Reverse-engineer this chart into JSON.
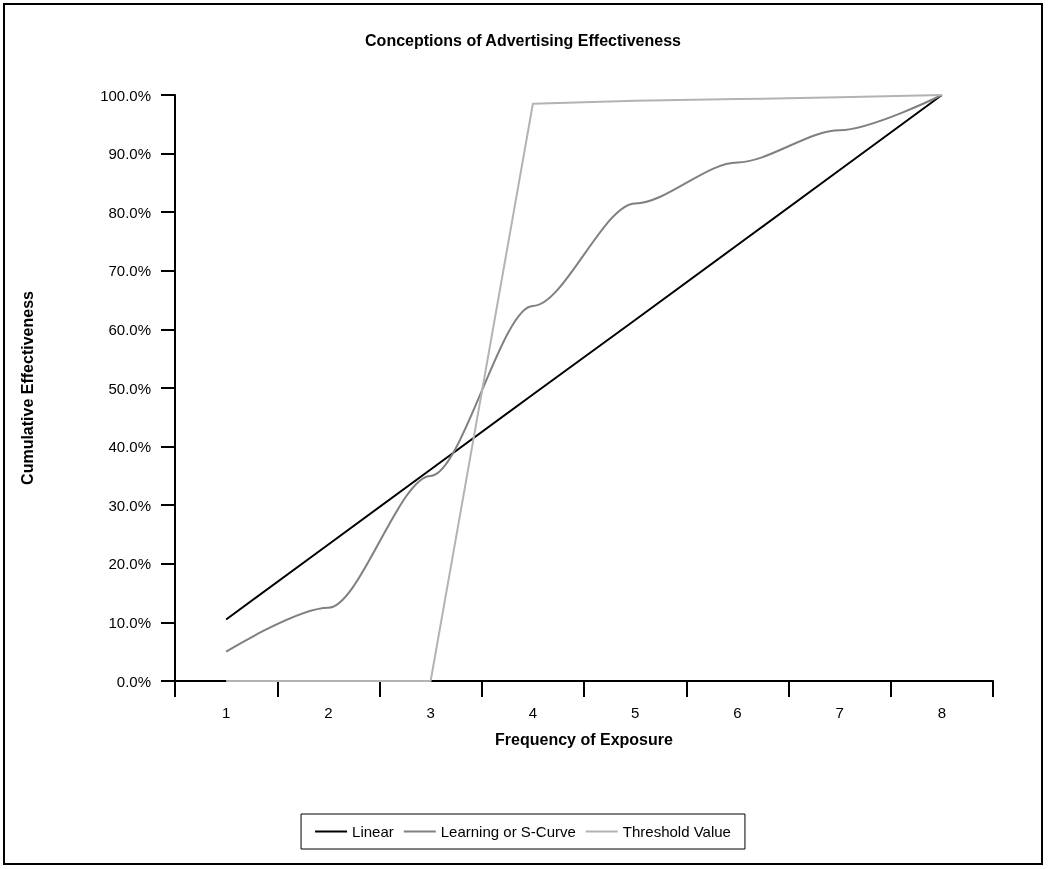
{
  "chart_data": {
    "type": "line",
    "title": "Conceptions of Advertising Effectiveness",
    "xlabel": "Frequency of Exposure",
    "ylabel": "Cumulative Effectiveness",
    "categories": [
      "1",
      "2",
      "3",
      "4",
      "5",
      "6",
      "7",
      "8"
    ],
    "series": [
      {
        "name": "Linear",
        "color": "#000000",
        "values": [
          10.5,
          23.3,
          36.1,
          48.9,
          61.6,
          74.4,
          87.2,
          100
        ]
      },
      {
        "name": "Learning or S-Curve",
        "color": "#808080",
        "values": [
          5,
          12.5,
          35,
          64,
          81.5,
          88.5,
          94,
          100
        ]
      },
      {
        "name": "Threshold Value",
        "color": "#b3b3b3",
        "values": [
          0,
          0,
          0,
          98.5,
          99,
          99.3,
          99.6,
          100
        ]
      }
    ],
    "ylim": [
      0,
      100
    ],
    "yticks": [
      {
        "value": 0,
        "label": "0.0%"
      },
      {
        "value": 10,
        "label": "10.0%"
      },
      {
        "value": 20,
        "label": "20.0%"
      },
      {
        "value": 30,
        "label": "30.0%"
      },
      {
        "value": 40,
        "label": "40.0%"
      },
      {
        "value": 50,
        "label": "50.0%"
      },
      {
        "value": 60,
        "label": "60.0%"
      },
      {
        "value": 70,
        "label": "70.0%"
      },
      {
        "value": 80,
        "label": "80.0%"
      },
      {
        "value": 90,
        "label": "90.0%"
      },
      {
        "value": 100,
        "label": "100.0%"
      }
    ],
    "grid": false,
    "legend": "bottom",
    "marker": "none",
    "line_style": "solid"
  }
}
